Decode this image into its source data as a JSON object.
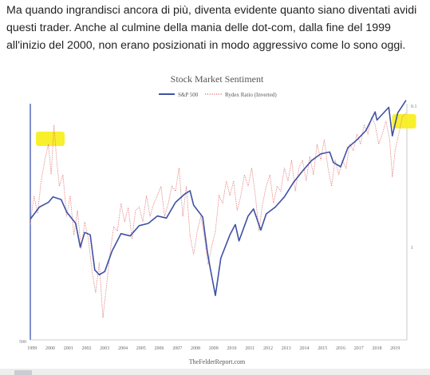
{
  "article": {
    "paragraph": "Ma quando ingrandisci ancora di più, diventa evidente quanto siano diventati avidi questi trader. Anche al culmine della mania delle dot-com, dalla fine del 1999 all'inizio del 2000, non erano posizionati in modo aggressivo come lo sono oggi."
  },
  "chart_data": {
    "type": "line",
    "title": "Stock Market Sentiment",
    "source": "TheFelderReport.com",
    "legend": {
      "placement": "top-center"
    },
    "x_ticks": [
      "1999",
      "2000",
      "2001",
      "2002",
      "2003",
      "2004",
      "2005",
      "2006",
      "2007",
      "2008",
      "2009",
      "2010",
      "2011",
      "2012",
      "2013",
      "2014",
      "2015",
      "2016",
      "2017",
      "2018",
      "2019"
    ],
    "xlim": [
      1999.0,
      2019.75
    ],
    "left_axis": {
      "scale": "log",
      "range": [
        500,
        3000
      ],
      "tick_labels": [
        "500"
      ]
    },
    "right_axis": {
      "scale": "log",
      "inverted": true,
      "range": [
        0.1,
        10
      ],
      "tick_labels": [
        "0.1",
        "1"
      ]
    },
    "grid": false,
    "series": [
      {
        "name": "S&P 500",
        "axis": "left",
        "color": "#3f51a3",
        "style": "solid",
        "points": [
          [
            1999.0,
            1250
          ],
          [
            1999.5,
            1370
          ],
          [
            2000.0,
            1420
          ],
          [
            2000.25,
            1480
          ],
          [
            2000.7,
            1450
          ],
          [
            2001.0,
            1320
          ],
          [
            2001.5,
            1210
          ],
          [
            2001.75,
            1010
          ],
          [
            2002.0,
            1130
          ],
          [
            2002.3,
            1110
          ],
          [
            2002.55,
            850
          ],
          [
            2002.8,
            820
          ],
          [
            2003.1,
            840
          ],
          [
            2003.5,
            980
          ],
          [
            2004.0,
            1120
          ],
          [
            2004.5,
            1100
          ],
          [
            2005.0,
            1190
          ],
          [
            2005.5,
            1210
          ],
          [
            2006.0,
            1280
          ],
          [
            2006.5,
            1260
          ],
          [
            2007.0,
            1420
          ],
          [
            2007.5,
            1510
          ],
          [
            2007.8,
            1550
          ],
          [
            2008.0,
            1390
          ],
          [
            2008.5,
            1270
          ],
          [
            2008.75,
            980
          ],
          [
            2008.9,
            870
          ],
          [
            2009.2,
            700
          ],
          [
            2009.5,
            930
          ],
          [
            2010.0,
            1110
          ],
          [
            2010.3,
            1200
          ],
          [
            2010.5,
            1060
          ],
          [
            2011.0,
            1280
          ],
          [
            2011.3,
            1350
          ],
          [
            2011.7,
            1150
          ],
          [
            2012.0,
            1300
          ],
          [
            2012.5,
            1370
          ],
          [
            2013.0,
            1480
          ],
          [
            2013.5,
            1650
          ],
          [
            2014.0,
            1800
          ],
          [
            2014.5,
            1950
          ],
          [
            2015.0,
            2050
          ],
          [
            2015.5,
            2080
          ],
          [
            2015.7,
            1920
          ],
          [
            2016.1,
            1860
          ],
          [
            2016.5,
            2150
          ],
          [
            2017.0,
            2280
          ],
          [
            2017.5,
            2450
          ],
          [
            2018.0,
            2820
          ],
          [
            2018.1,
            2650
          ],
          [
            2018.75,
            2920
          ],
          [
            2018.95,
            2350
          ],
          [
            2019.25,
            2800
          ],
          [
            2019.5,
            2950
          ],
          [
            2019.7,
            3080
          ]
        ]
      },
      {
        "name": "Rydex Ratio (Inverted)",
        "axis": "right",
        "color": "#e06b6b",
        "style": "dotted",
        "points": [
          [
            1999.0,
            1.05
          ],
          [
            1999.2,
            0.6
          ],
          [
            1999.4,
            0.85
          ],
          [
            1999.6,
            0.45
          ],
          [
            1999.8,
            0.3
          ],
          [
            2000.0,
            0.22
          ],
          [
            2000.15,
            0.4
          ],
          [
            2000.3,
            0.15
          ],
          [
            2000.45,
            0.3
          ],
          [
            2000.6,
            0.5
          ],
          [
            2000.8,
            0.4
          ],
          [
            2001.0,
            0.9
          ],
          [
            2001.2,
            0.6
          ],
          [
            2001.4,
            1.3
          ],
          [
            2001.6,
            0.8
          ],
          [
            2001.8,
            1.7
          ],
          [
            2002.0,
            1.0
          ],
          [
            2002.2,
            1.4
          ],
          [
            2002.4,
            2.6
          ],
          [
            2002.6,
            4.0
          ],
          [
            2002.8,
            2.2
          ],
          [
            2003.0,
            6.5
          ],
          [
            2003.2,
            3.5
          ],
          [
            2003.4,
            1.8
          ],
          [
            2003.6,
            1.1
          ],
          [
            2003.8,
            1.2
          ],
          [
            2004.0,
            0.7
          ],
          [
            2004.2,
            1.0
          ],
          [
            2004.4,
            0.75
          ],
          [
            2004.6,
            1.4
          ],
          [
            2004.8,
            0.8
          ],
          [
            2005.0,
            0.75
          ],
          [
            2005.2,
            1.0
          ],
          [
            2005.4,
            0.6
          ],
          [
            2005.6,
            0.9
          ],
          [
            2005.8,
            0.7
          ],
          [
            2006.0,
            0.6
          ],
          [
            2006.2,
            0.5
          ],
          [
            2006.4,
            0.9
          ],
          [
            2006.6,
            0.7
          ],
          [
            2006.8,
            0.5
          ],
          [
            2007.0,
            0.55
          ],
          [
            2007.2,
            0.35
          ],
          [
            2007.4,
            0.9
          ],
          [
            2007.6,
            0.5
          ],
          [
            2007.8,
            1.3
          ],
          [
            2008.0,
            1.9
          ],
          [
            2008.2,
            1.2
          ],
          [
            2008.4,
            0.9
          ],
          [
            2008.6,
            1.4
          ],
          [
            2008.8,
            2.3
          ],
          [
            2009.0,
            1.6
          ],
          [
            2009.2,
            1.2
          ],
          [
            2009.4,
            0.6
          ],
          [
            2009.6,
            0.7
          ],
          [
            2009.8,
            0.45
          ],
          [
            2010.0,
            0.6
          ],
          [
            2010.2,
            0.45
          ],
          [
            2010.4,
            0.8
          ],
          [
            2010.6,
            0.6
          ],
          [
            2010.8,
            0.4
          ],
          [
            2011.0,
            0.5
          ],
          [
            2011.2,
            0.35
          ],
          [
            2011.4,
            0.6
          ],
          [
            2011.6,
            1.2
          ],
          [
            2011.8,
            0.7
          ],
          [
            2012.0,
            0.5
          ],
          [
            2012.2,
            0.4
          ],
          [
            2012.4,
            0.7
          ],
          [
            2012.6,
            0.5
          ],
          [
            2012.8,
            0.55
          ],
          [
            2013.0,
            0.35
          ],
          [
            2013.2,
            0.45
          ],
          [
            2013.4,
            0.3
          ],
          [
            2013.6,
            0.55
          ],
          [
            2013.8,
            0.35
          ],
          [
            2014.0,
            0.3
          ],
          [
            2014.2,
            0.45
          ],
          [
            2014.4,
            0.28
          ],
          [
            2014.6,
            0.4
          ],
          [
            2014.8,
            0.22
          ],
          [
            2015.0,
            0.3
          ],
          [
            2015.2,
            0.2
          ],
          [
            2015.4,
            0.35
          ],
          [
            2015.6,
            0.5
          ],
          [
            2015.8,
            0.3
          ],
          [
            2016.0,
            0.4
          ],
          [
            2016.2,
            0.3
          ],
          [
            2016.4,
            0.35
          ],
          [
            2016.6,
            0.22
          ],
          [
            2016.8,
            0.25
          ],
          [
            2017.0,
            0.18
          ],
          [
            2017.2,
            0.22
          ],
          [
            2017.4,
            0.15
          ],
          [
            2017.6,
            0.18
          ],
          [
            2017.8,
            0.13
          ],
          [
            2018.0,
            0.15
          ],
          [
            2018.2,
            0.22
          ],
          [
            2018.4,
            0.18
          ],
          [
            2018.6,
            0.14
          ],
          [
            2018.8,
            0.2
          ],
          [
            2018.95,
            0.42
          ],
          [
            2019.1,
            0.25
          ],
          [
            2019.3,
            0.18
          ],
          [
            2019.5,
            0.13
          ],
          [
            2019.7,
            0.12
          ]
        ]
      }
    ],
    "annotations": [
      {
        "type": "highlight",
        "color": "#f7ef1b",
        "near_x": 2000.1,
        "note": "marker over the 2000 peak of the Rydex ratio"
      },
      {
        "type": "highlight",
        "color": "#f7ef1b",
        "near_x": 2019.6,
        "note": "marker over the 2019 reading of the Rydex ratio"
      }
    ]
  }
}
